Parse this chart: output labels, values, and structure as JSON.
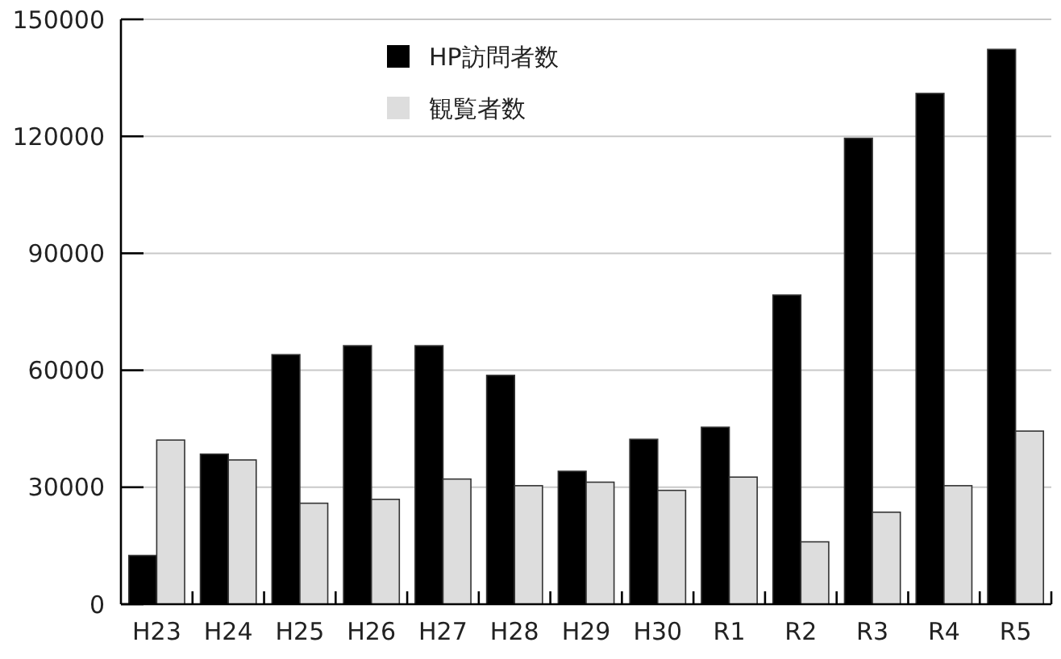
{
  "chart_data": {
    "type": "bar",
    "categories": [
      "H23",
      "H24",
      "H25",
      "H26",
      "H27",
      "H28",
      "H29",
      "H30",
      "R1",
      "R2",
      "R3",
      "R4",
      "R5"
    ],
    "series": [
      {
        "name": "HP訪問者数",
        "color": "#000000",
        "values": [
          12500,
          38500,
          64000,
          66300,
          66300,
          58700,
          34100,
          42300,
          45400,
          79300,
          119500,
          131000,
          142300
        ]
      },
      {
        "name": "観覧者数",
        "color": "#dddddd",
        "values": [
          42100,
          37000,
          25900,
          26900,
          32100,
          30400,
          31300,
          29200,
          32600,
          16000,
          23600,
          30400,
          44400
        ]
      }
    ],
    "ylim": [
      0,
      150000
    ],
    "yticks": [
      0,
      30000,
      60000,
      90000,
      120000,
      150000
    ],
    "grid": "y",
    "legend": "top"
  }
}
